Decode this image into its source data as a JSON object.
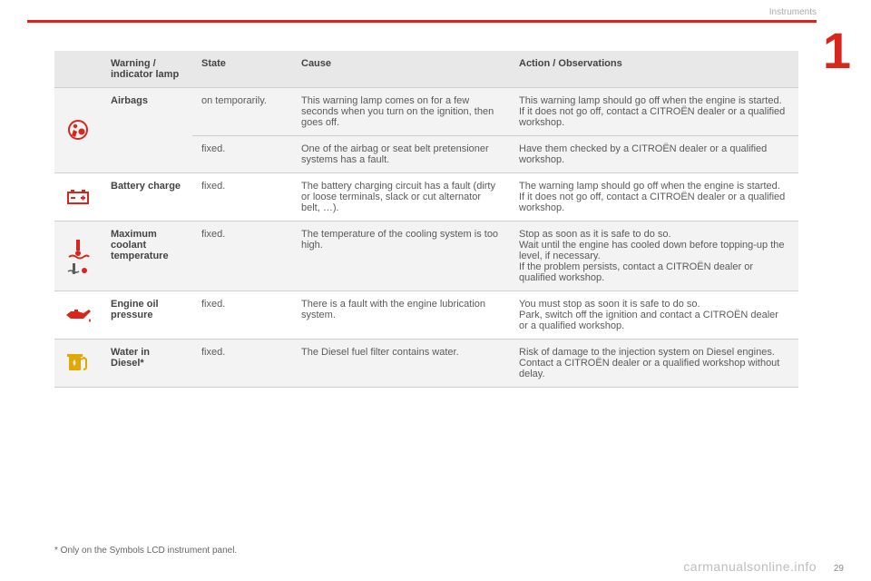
{
  "header": {
    "section_label": "Instruments",
    "chapter_number": "1"
  },
  "table": {
    "headers": {
      "lamp": "Warning / indicator lamp",
      "state": "State",
      "cause": "Cause",
      "action": "Action / Observations"
    },
    "rows": [
      {
        "icon": "airbag",
        "icon_color": "#d9261c",
        "lamp": "Airbags",
        "rowspan": 2,
        "state": "on temporarily.",
        "cause": "This warning lamp comes on for a few seconds when you turn on the ignition, then goes off.",
        "action": "This warning lamp should go off when the engine is started.\nIf it does not go off, contact a CITROËN dealer or a qualified workshop.",
        "bg": "odd"
      },
      {
        "state": "fixed.",
        "cause": "One of the airbag or seat belt pretensioner systems has a fault.",
        "action": "Have them checked by a CITROËN dealer or a qualified workshop.",
        "bg": "odd"
      },
      {
        "icon": "battery",
        "icon_color": "#d9261c",
        "lamp": "Battery charge",
        "state": "fixed.",
        "cause": "The battery charging circuit has a fault (dirty or loose terminals, slack or cut alternator belt, …).",
        "action": "The warning lamp should go off when the engine is started.\nIf it does not go off, contact a CITROËN dealer or a qualified workshop.",
        "bg": "even"
      },
      {
        "icon": "coolant",
        "icon_color": "#d9261c",
        "lamp": "Maximum coolant temperature",
        "state": "fixed.",
        "cause": "The temperature of the cooling system is too high.",
        "action": "Stop as soon as it is safe to do so.\nWait until the engine has cooled down before topping-up the level, if necessary.\nIf the problem persists, contact a CITROËN dealer or qualified workshop.",
        "bg": "odd"
      },
      {
        "icon": "oil",
        "icon_color": "#d9261c",
        "lamp": "Engine oil pressure",
        "state": "fixed.",
        "cause": "There is a fault with the engine lubrication system.",
        "action": "You must stop as soon it is safe to do so.\nPark, switch off the ignition and contact a CITROËN dealer or a qualified workshop.",
        "bg": "even"
      },
      {
        "icon": "fuel-water",
        "icon_color": "#e0a800",
        "lamp": "Water in Diesel*",
        "state": "fixed.",
        "cause": "The Diesel fuel filter contains water.",
        "action": "Risk of damage to the injection system on Diesel engines.\nContact a CITROËN dealer or a qualified workshop without delay.",
        "bg": "odd"
      }
    ]
  },
  "footnote": "* Only on the Symbols LCD instrument panel.",
  "watermark": "carmanualsonline.info",
  "pagenum": "29"
}
